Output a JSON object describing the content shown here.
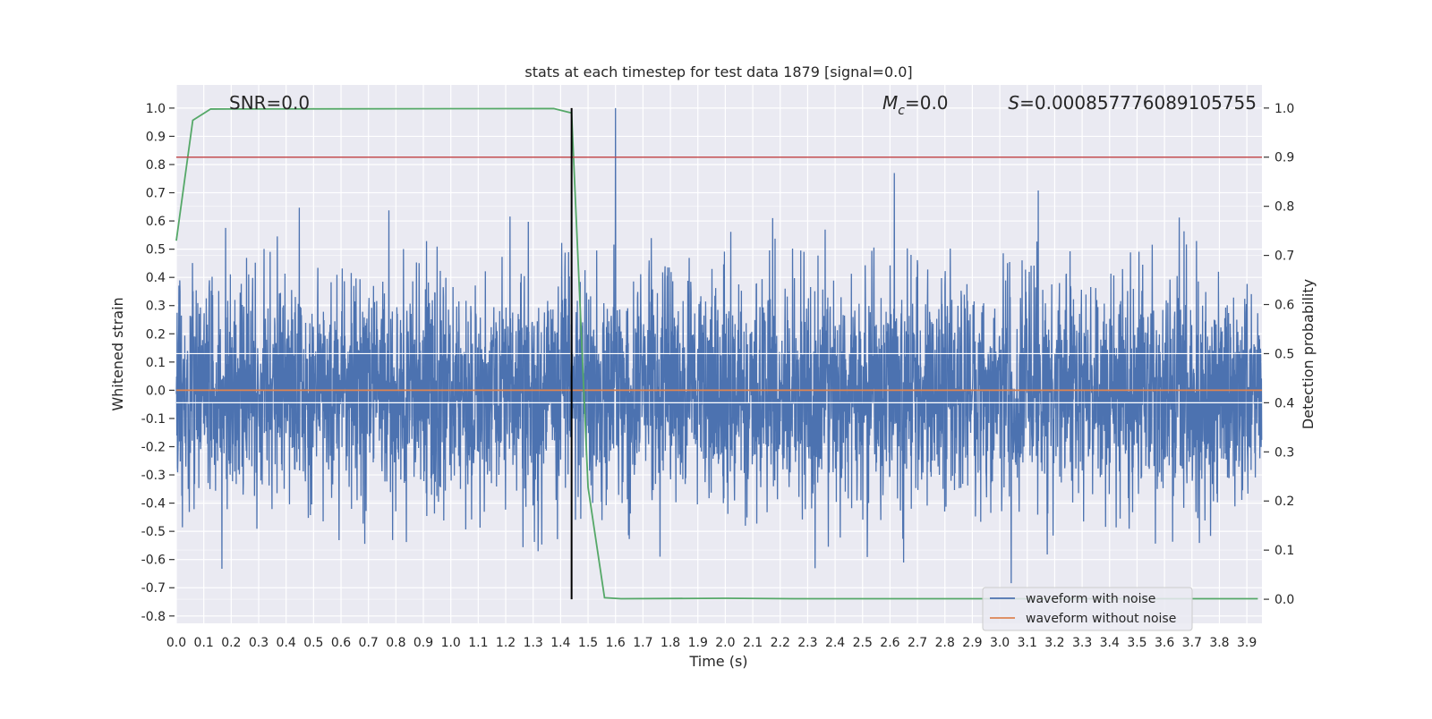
{
  "chart_data": {
    "type": "line",
    "title": "stats at each timestep for test data 1879 [signal=0.0]",
    "xlabel": "Time (s)",
    "ylabel": "Whitened strain",
    "ylabel_right": "Detection probability",
    "xlim": [
      0.0,
      3.955
    ],
    "ylim": [
      -0.826,
      1.082
    ],
    "ylim_right": [
      -0.049,
      1.047
    ],
    "xticks": [
      "0.0",
      "0.1",
      "0.2",
      "0.3",
      "0.4",
      "0.5",
      "0.6",
      "0.7",
      "0.8",
      "0.9",
      "1.0",
      "1.1",
      "1.2",
      "1.3",
      "1.4",
      "1.5",
      "1.6",
      "1.7",
      "1.8",
      "1.9",
      "2.0",
      "2.1",
      "2.2",
      "2.3",
      "2.4",
      "2.5",
      "2.6",
      "2.7",
      "2.8",
      "2.9",
      "3.0",
      "3.1",
      "3.2",
      "3.3",
      "3.4",
      "3.5",
      "3.6",
      "3.7",
      "3.8",
      "3.9"
    ],
    "yticks": [
      "1.0",
      "0.9",
      "0.8",
      "0.7",
      "0.6",
      "0.5",
      "0.4",
      "0.3",
      "0.2",
      "0.1",
      "0.0",
      "-0.1",
      "-0.2",
      "-0.3",
      "-0.4",
      "-0.5",
      "-0.6",
      "-0.7",
      "-0.8"
    ],
    "yticks_right": [
      "1.0",
      "0.9",
      "0.8",
      "0.7",
      "0.6",
      "0.5",
      "0.4",
      "0.3",
      "0.2",
      "0.1",
      "0.0"
    ],
    "grid": true,
    "legend_placement": "lower-right",
    "annotations": {
      "snr": "SNR=0.0",
      "mc_symbol": "M",
      "mc_sub": "c",
      "mc_value": "=0.0",
      "s_symbol": "S",
      "s_value": "=0.000857776089105755"
    },
    "series": [
      {
        "name": "waveform with noise",
        "axis": "left",
        "color": "#4c72b0",
        "kind": "noise",
        "amplitude_peak": 1.0,
        "peak_time": 1.6
      },
      {
        "name": "waveform without noise",
        "axis": "left",
        "color": "#dd8452",
        "x": [
          0.0,
          3.955
        ],
        "y": [
          0.0,
          0.0
        ]
      },
      {
        "axis": "right",
        "color": "#55a868",
        "x": [
          0.0,
          0.06,
          0.125,
          1.375,
          1.44,
          1.5,
          1.56,
          1.62,
          2.0,
          2.25,
          3.94
        ],
        "y": [
          0.73,
          0.975,
          0.998,
          0.999,
          0.99,
          0.228,
          0.003,
          0.001,
          0.002,
          0.001,
          0.001
        ]
      },
      {
        "axis": "right",
        "color": "#c44e52",
        "kind": "hline",
        "y": 0.9
      },
      {
        "axis": "right",
        "color": "#000000",
        "kind": "vline",
        "x": 1.44,
        "y": [
          0.0,
          1.0
        ]
      }
    ]
  }
}
